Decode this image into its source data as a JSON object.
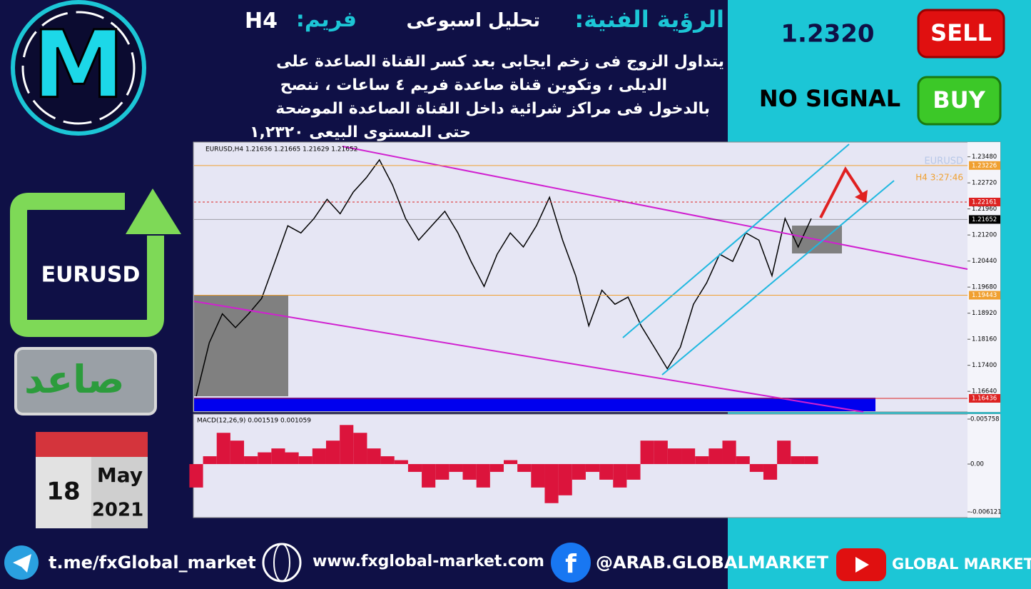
{
  "header": {
    "title": "الرؤية الفنية:",
    "subtitle": "تحليل اسبوعى",
    "frame_label": "فريم:",
    "frame": "H4",
    "body": [
      "يتداول الزوج فى زخم ايجابى بعد كسر القناة الصاعدة على",
      "الديلى ، وتكوين قناة صاعدة فريم ٤ ساعات ، ننصح",
      "بالدخول فى مراكز شرائية داخل القناة الصاعدة الموضحة",
      "حتى المستوى البيعى ١,٢٣٢٠"
    ]
  },
  "sidebar": {
    "logo": "M",
    "pair": "EURUSD",
    "trend": "صاعد",
    "day": "18",
    "month": "May",
    "year": "2021"
  },
  "signal": {
    "price": "1.2320",
    "sell": "SELL",
    "buy": "BUY",
    "status": "NO SIGNAL"
  },
  "footer": {
    "telegram": "t.me/fxGlobal_market",
    "website": "www.fxglobal-market.com",
    "facebook": "@ARAB.GLOBALMARKET",
    "youtube": "GLOBAL MARKET"
  },
  "chart_data": [
    {
      "type": "line",
      "title": "EURUSD,H4  1.21636 1.21665 1.21629 1.21652",
      "watermark": "EURUSD",
      "timer": "H4   3:27:46",
      "ylim": [
        1.1604,
        1.2393
      ],
      "yticks": [
        {
          "value": 1.2348,
          "label": "1.23480"
        },
        {
          "value": 1.2272,
          "label": "1.22720"
        },
        {
          "value": 1.2196,
          "label": "1.21960"
        },
        {
          "value": 1.212,
          "label": "1.21200"
        },
        {
          "value": 1.2044,
          "label": "1.20440"
        },
        {
          "value": 1.1968,
          "label": "1.19680"
        },
        {
          "value": 1.1892,
          "label": "1.18920"
        },
        {
          "value": 1.1816,
          "label": "1.18160"
        },
        {
          "value": 1.174,
          "label": "1.17400"
        },
        {
          "value": 1.1664,
          "label": "1.16640"
        }
      ],
      "levels": [
        {
          "value": 1.23226,
          "color": "#f0a030"
        },
        {
          "value": 1.22161,
          "color": "#dd2222",
          "dashed": true
        },
        {
          "value": 1.21652,
          "color": "#000000"
        },
        {
          "value": 1.19443,
          "color": "#f0a030"
        },
        {
          "value": 1.16436,
          "color": "#dd2222"
        }
      ],
      "series": [
        {
          "color": "#000000",
          "values": [
            1.165,
            1.1806,
            1.189,
            1.185,
            1.189,
            1.1935,
            1.204,
            1.2147,
            1.2126,
            1.2168,
            1.2224,
            1.2182,
            1.2245,
            1.2287,
            1.2339,
            1.2266,
            1.2168,
            1.2105,
            1.2147,
            1.2189,
            1.2126,
            1.2043,
            1.197,
            1.2064,
            1.2126,
            1.2085,
            1.2147,
            1.223,
            1.2105,
            1.2001,
            1.1855,
            1.1959,
            1.1918,
            1.1939,
            1.1855,
            1.1793,
            1.173,
            1.1793,
            1.1918,
            1.198,
            1.2064,
            1.2043,
            1.2126,
            1.2105,
            1.2001,
            1.2168,
            1.2085,
            1.2168
          ]
        }
      ]
    },
    {
      "type": "bar",
      "title": "MACD(12,26,9) 0.001519 0.001059",
      "color": "#dc143c",
      "ylim": [
        -0.006121,
        0.005758
      ],
      "yticks": [
        0.005758,
        {
          "value": 0,
          "label": "0.00"
        },
        -0.006121
      ],
      "values": [
        -0.003,
        0.001,
        0.004,
        0.003,
        0.001,
        0.0015,
        0.002,
        0.0015,
        0.001,
        0.002,
        0.003,
        0.005,
        0.004,
        0.002,
        0.001,
        0.0005,
        -0.001,
        -0.003,
        -0.002,
        -0.001,
        -0.002,
        -0.003,
        -0.001,
        0.0005,
        -0.001,
        -0.003,
        -0.005,
        -0.004,
        -0.002,
        -0.001,
        -0.002,
        -0.003,
        -0.002,
        0.003,
        0.003,
        0.002,
        0.002,
        0.001,
        0.002,
        0.003,
        0.001,
        -0.001,
        -0.002,
        0.003,
        0.001,
        0.001
      ]
    }
  ]
}
